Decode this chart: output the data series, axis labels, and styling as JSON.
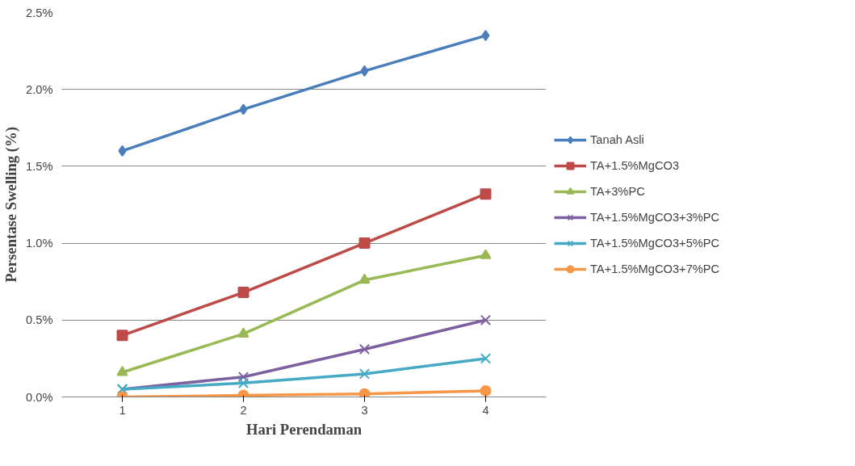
{
  "chart_data": {
    "type": "line",
    "xlabel": "Hari Perendaman",
    "ylabel": "Persentase Swelling (%)",
    "categories": [
      "1",
      "2",
      "3",
      "4"
    ],
    "ylim": [
      0,
      2.5
    ],
    "yticks": [
      {
        "value": 0,
        "label": "0.0%"
      },
      {
        "value": 0.5,
        "label": "0.5%"
      },
      {
        "value": 1.0,
        "label": "1.0%"
      },
      {
        "value": 1.5,
        "label": "1.5%"
      },
      {
        "value": 2.0,
        "label": "2.0%"
      },
      {
        "value": 2.5,
        "label": "2.5%"
      }
    ],
    "grid": "y",
    "legend": "right",
    "series": [
      {
        "name": "Tanah Asli",
        "color": "#4a7ebb",
        "marker": "diamond",
        "values": [
          1.6,
          1.87,
          2.12,
          2.35
        ]
      },
      {
        "name": "TA+1.5%MgCO3",
        "color": "#be4b48",
        "marker": "square",
        "values": [
          0.4,
          0.68,
          1.0,
          1.32
        ]
      },
      {
        "name": "TA+3%PC",
        "color": "#98b954",
        "marker": "triangle",
        "values": [
          0.16,
          0.41,
          0.76,
          0.92
        ]
      },
      {
        "name": "TA+1.5%MgCO3+3%PC",
        "color": "#7d60a0",
        "marker": "cross",
        "values": [
          0.05,
          0.13,
          0.31,
          0.5
        ]
      },
      {
        "name": "TA+1.5%MgCO3+5%PC",
        "color": "#46aac5",
        "marker": "cross",
        "values": [
          0.05,
          0.09,
          0.15,
          0.25
        ]
      },
      {
        "name": "TA+1.5%MgCO3+7%PC",
        "color": "#f79646",
        "marker": "circle",
        "values": [
          0.0,
          0.01,
          0.02,
          0.04
        ]
      }
    ]
  }
}
